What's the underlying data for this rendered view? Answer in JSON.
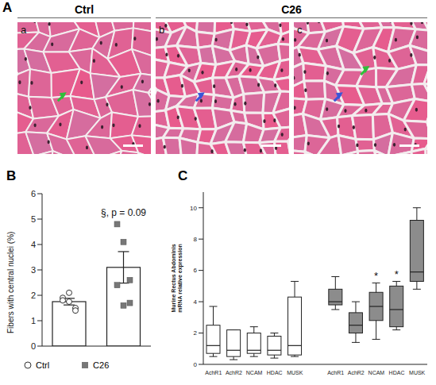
{
  "figure": {
    "label": "A",
    "groups": [
      {
        "title": "Ctrl",
        "images": [
          "a"
        ]
      },
      {
        "title": "C26",
        "images": [
          "b",
          "c"
        ]
      }
    ]
  },
  "chart_data": [
    {
      "label": "B",
      "type": "bar",
      "y_label": "Fibers with central nuclei (%)",
      "ylim": [
        0,
        6
      ],
      "yticks": [
        0,
        1,
        2,
        3,
        4,
        5,
        6
      ],
      "tick_labels": "y",
      "legend": "bottom",
      "series": [
        {
          "name": "Ctrl",
          "color": "#ffffff",
          "marker": "circle",
          "values": [
            1.75
          ],
          "errors": [
            0.13
          ],
          "points": [
            1.9,
            1.75,
            1.5,
            1.8,
            2.1,
            1.4
          ]
        },
        {
          "name": "C26",
          "color": "#777777",
          "marker": "square",
          "values": [
            3.1
          ],
          "errors": [
            0.62
          ],
          "points": [
            4.8,
            4.1,
            2.6,
            2.4,
            1.6,
            1.7
          ]
        }
      ],
      "annotations": [
        {
          "text": "§, p = 0.09",
          "series": "C26"
        }
      ]
    },
    {
      "label": "C",
      "type": "box",
      "y_label": "Murine Rectus Abdominis mRNA relative expression",
      "ylim": [
        0,
        11
      ],
      "yticks": [
        0,
        2,
        4,
        6,
        8,
        10
      ],
      "categories": [
        "AchR1",
        "AchR2",
        "NCAM",
        "HDAC",
        "MUSK"
      ],
      "series": [
        {
          "name": "Ctrl",
          "color": "#ffffff",
          "min": [
            0.5,
            0.3,
            0.5,
            0.4,
            0.5
          ],
          "q1": [
            0.7,
            0.5,
            0.7,
            0.6,
            0.6
          ],
          "median": [
            1.2,
            0.9,
            0.9,
            0.9,
            1.2
          ],
          "q3": [
            2.5,
            2.2,
            2.0,
            1.8,
            4.3
          ],
          "max": [
            3.7,
            2.2,
            2.4,
            2.0,
            5.3
          ]
        },
        {
          "name": "C26",
          "color": "#8c8c8c",
          "min": [
            3.5,
            1.4,
            1.6,
            2.2,
            4.8
          ],
          "q1": [
            3.8,
            2.0,
            2.8,
            2.4,
            5.3
          ],
          "median": [
            4.0,
            2.5,
            3.7,
            3.5,
            5.9
          ],
          "q3": [
            4.8,
            3.3,
            4.6,
            5.0,
            9.2
          ],
          "max": [
            5.6,
            4.0,
            5.2,
            5.3,
            10.0
          ]
        }
      ],
      "annotations": [
        {
          "text": "*",
          "series": "C26",
          "category": "NCAM"
        },
        {
          "text": "*",
          "series": "C26",
          "category": "HDAC"
        }
      ]
    }
  ]
}
